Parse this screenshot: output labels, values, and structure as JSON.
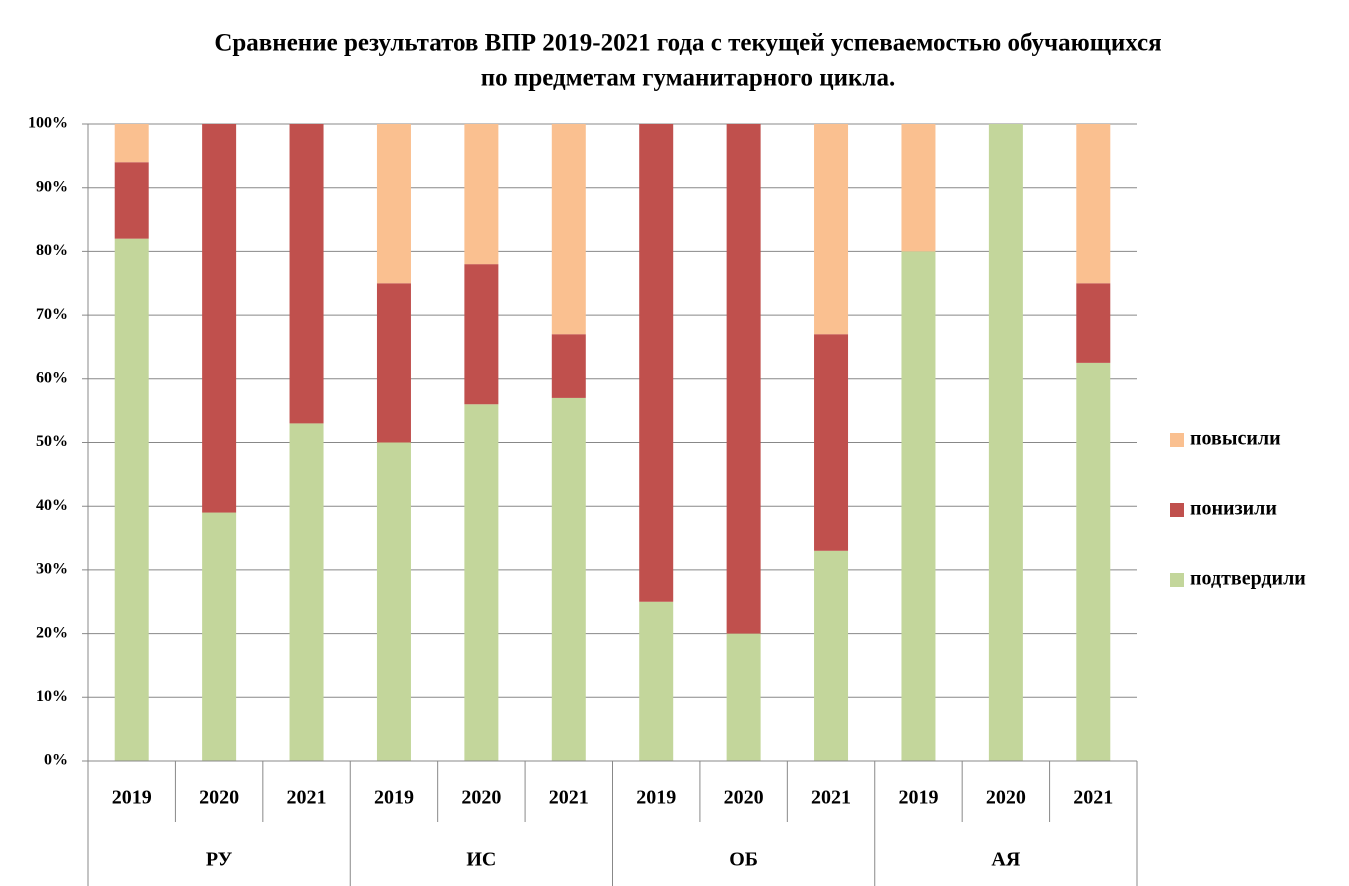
{
  "chart_data": {
    "type": "stacked_bar_100",
    "title": [
      "Сравнение результатов ВПР 2019-2021 года с текущей успеваемостью обучающихся",
      "по предметам  гуманитарного цикла."
    ],
    "categories": [
      "2019",
      "2020",
      "2021",
      "2019",
      "2020",
      "2021",
      "2019",
      "2020",
      "2021",
      "2019",
      "2020",
      "2021"
    ],
    "groups": [
      "РУ",
      "ИС",
      "ОБ",
      "АЯ"
    ],
    "series": [
      {
        "name": "подтвердили",
        "color": "#c3d69b",
        "values": [
          82,
          39,
          53,
          50,
          56,
          57,
          25,
          20,
          33,
          80,
          100,
          62.5
        ]
      },
      {
        "name": "понизили",
        "color": "#c0504d",
        "values": [
          12,
          61,
          47,
          25,
          22,
          10,
          75,
          80,
          34,
          0,
          0,
          12.5
        ]
      },
      {
        "name": "повысили",
        "color": "#fac090",
        "values": [
          6,
          0,
          0,
          25,
          22,
          33,
          0,
          0,
          33,
          20,
          0,
          25
        ]
      }
    ],
    "ylim": [
      0,
      100
    ],
    "yticks": [
      {
        "value": 0,
        "label": "0%"
      },
      {
        "value": 10,
        "label": "10%"
      },
      {
        "value": 20,
        "label": "20%"
      },
      {
        "value": 30,
        "label": "30%"
      },
      {
        "value": 40,
        "label": "40%"
      },
      {
        "value": 50,
        "label": "50%"
      },
      {
        "value": 60,
        "label": "60%"
      },
      {
        "value": 70,
        "label": "70%"
      },
      {
        "value": 80,
        "label": "80%"
      },
      {
        "value": 90,
        "label": "90%"
      },
      {
        "value": 100,
        "label": "100%"
      }
    ],
    "grid": true,
    "legend": "right"
  }
}
